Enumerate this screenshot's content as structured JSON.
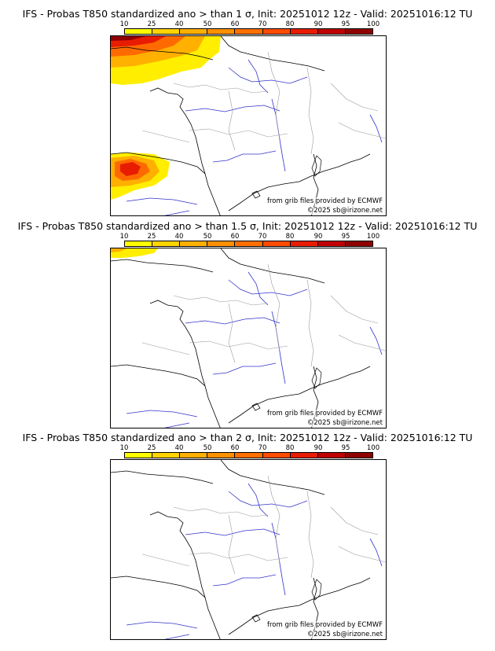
{
  "colorbar": {
    "ticks": [
      "10",
      "25",
      "40",
      "50",
      "60",
      "70",
      "80",
      "90",
      "95",
      "100"
    ],
    "colors": [
      "#ffff00",
      "#ffd400",
      "#ffb000",
      "#ff9000",
      "#ff7000",
      "#ff4c00",
      "#e81c00",
      "#c00000",
      "#900000"
    ]
  },
  "panels": [
    {
      "title": "IFS - Probas T850  standardized ano > than 1 σ, Init: 20251012 12z - Valid: 20251016:12 TU",
      "source": "from grib files provided by ECMWF",
      "copyright": "©2025 sb@irizone.net"
    },
    {
      "title": "IFS - Probas T850  standardized ano > than 1.5 σ, Init: 20251012 12z - Valid: 20251016:12 TU",
      "source": "from grib files provided by ECMWF",
      "copyright": "©2025 sb@irizone.net"
    },
    {
      "title": "IFS - Probas T850  standardized ano > than 2 σ, Init: 20251012 12z - Valid: 20251016:12 TU",
      "source": "from grib files provided by ECMWF",
      "copyright": "©2025 sb@irizone.net"
    }
  ]
}
